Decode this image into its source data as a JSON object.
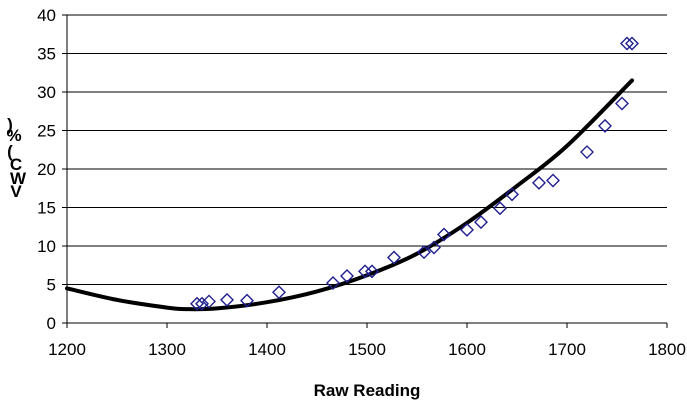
{
  "chart_data": {
    "type": "scatter",
    "title": "",
    "xlabel": "Raw Reading",
    "ylabel_chars": [
      ")",
      "%",
      "(",
      "C",
      "W",
      "V"
    ],
    "xlim": [
      1200,
      1800
    ],
    "ylim": [
      0,
      40
    ],
    "x_ticks": [
      1200,
      1300,
      1400,
      1500,
      1600,
      1700,
      1800
    ],
    "y_ticks": [
      0,
      5,
      10,
      15,
      20,
      25,
      30,
      35,
      40
    ],
    "grid": "horizontal",
    "legend": "none",
    "colors": {
      "markers": "#1f1f8f",
      "trendline": "#000000",
      "grid": "#000000"
    },
    "scatter_points": [
      {
        "x": 1330,
        "y": 2.5
      },
      {
        "x": 1335,
        "y": 2.5
      },
      {
        "x": 1342,
        "y": 2.8
      },
      {
        "x": 1360,
        "y": 3.0
      },
      {
        "x": 1380,
        "y": 2.9
      },
      {
        "x": 1412,
        "y": 4.0
      },
      {
        "x": 1466,
        "y": 5.2
      },
      {
        "x": 1480,
        "y": 6.1
      },
      {
        "x": 1498,
        "y": 6.7
      },
      {
        "x": 1505,
        "y": 6.7
      },
      {
        "x": 1527,
        "y": 8.5
      },
      {
        "x": 1557,
        "y": 9.2
      },
      {
        "x": 1567,
        "y": 9.8
      },
      {
        "x": 1577,
        "y": 11.5
      },
      {
        "x": 1600,
        "y": 12.1
      },
      {
        "x": 1614,
        "y": 13.1
      },
      {
        "x": 1633,
        "y": 14.9
      },
      {
        "x": 1645,
        "y": 16.7
      },
      {
        "x": 1672,
        "y": 18.2
      },
      {
        "x": 1686,
        "y": 18.5
      },
      {
        "x": 1720,
        "y": 22.2
      },
      {
        "x": 1738,
        "y": 25.6
      },
      {
        "x": 1755,
        "y": 28.5
      },
      {
        "x": 1760,
        "y": 36.3
      },
      {
        "x": 1765,
        "y": 36.3
      }
    ],
    "trendline": {
      "type": "polynomial",
      "x_range": [
        1200,
        1765
      ],
      "points": [
        {
          "x": 1200,
          "y": 4.5
        },
        {
          "x": 1250,
          "y": 3.0
        },
        {
          "x": 1300,
          "y": 2.0
        },
        {
          "x": 1320,
          "y": 1.8
        },
        {
          "x": 1350,
          "y": 1.9
        },
        {
          "x": 1400,
          "y": 2.7
        },
        {
          "x": 1450,
          "y": 4.1
        },
        {
          "x": 1500,
          "y": 6.2
        },
        {
          "x": 1550,
          "y": 9.0
        },
        {
          "x": 1600,
          "y": 13.0
        },
        {
          "x": 1650,
          "y": 17.8
        },
        {
          "x": 1700,
          "y": 23.0
        },
        {
          "x": 1765,
          "y": 31.5
        }
      ]
    }
  }
}
